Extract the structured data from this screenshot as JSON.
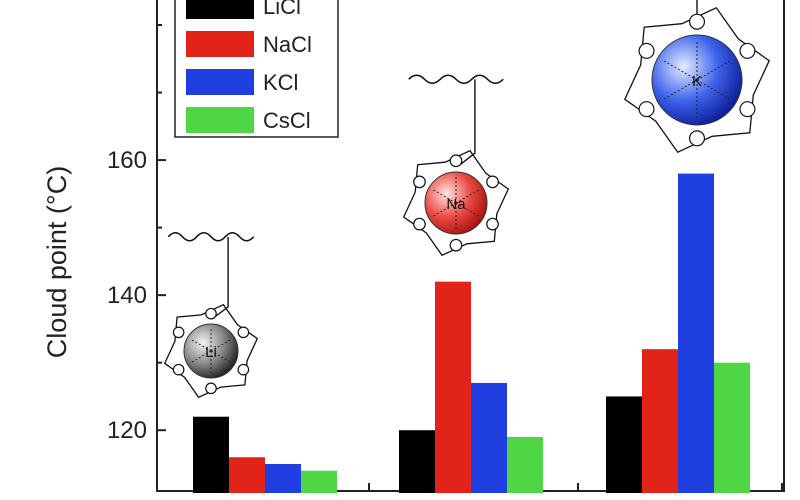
{
  "chart_data": {
    "type": "bar",
    "title": "",
    "xlabel": "",
    "ylabel": "Cloud point (°C)",
    "ylim": [
      111,
      184
    ],
    "yticks": [
      120,
      140,
      160
    ],
    "categories": [
      "",
      "",
      ""
    ],
    "series": [
      {
        "name": "LiCl",
        "color": "#000000",
        "values": [
          122,
          120,
          125
        ]
      },
      {
        "name": "NaCl",
        "color": "#e2231a",
        "values": [
          116,
          142,
          132
        ]
      },
      {
        "name": "KCl",
        "color": "#1f3fe0",
        "values": [
          115,
          127,
          158
        ]
      },
      {
        "name": "CsCl",
        "color": "#4ed645",
        "values": [
          114,
          119,
          130
        ]
      }
    ],
    "legend_position": "top-left",
    "grid": false,
    "annotations": [
      {
        "ion": "Li",
        "label": "Li",
        "color": "gray-sphere"
      },
      {
        "ion": "Na",
        "label": "Na",
        "color": "red-sphere"
      },
      {
        "ion": "K",
        "label": "K",
        "color": "blue-sphere"
      }
    ]
  }
}
